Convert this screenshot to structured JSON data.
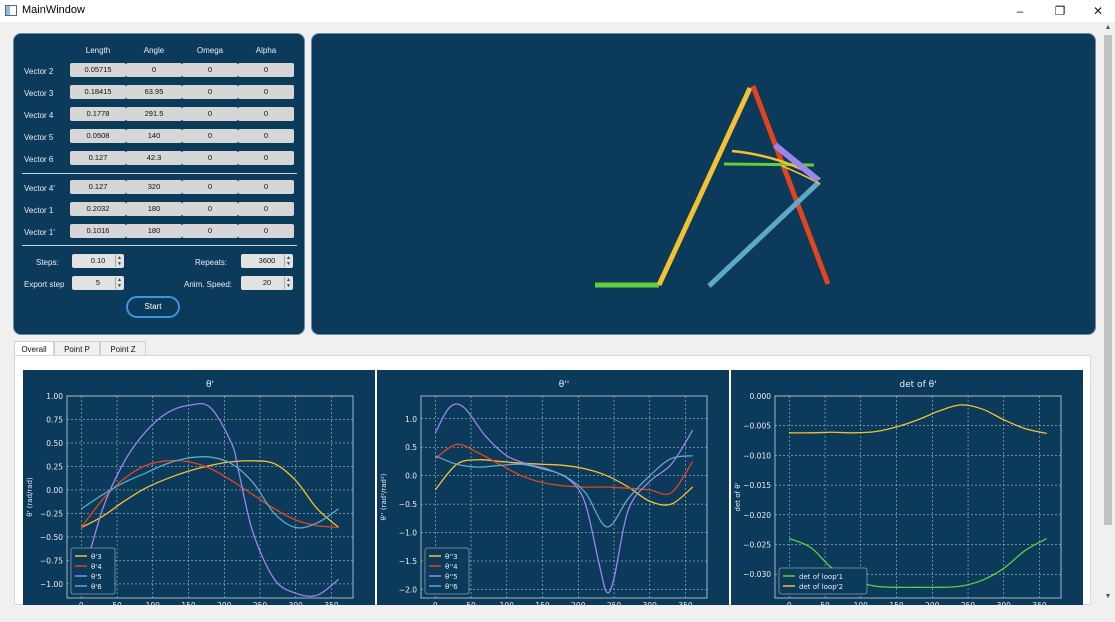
{
  "window": {
    "title": "MainWindow",
    "minimize_glyph": "–",
    "restore_glyph": "❐",
    "close_glyph": "✕"
  },
  "table": {
    "headers": [
      "Length",
      "Angle",
      "Omega",
      "Alpha"
    ],
    "rows": [
      {
        "label": "Vector 2",
        "length": "0.05715",
        "angle": "0",
        "omega": "0",
        "alpha": "0"
      },
      {
        "label": "Vector 3",
        "length": "0.18415",
        "angle": "63.95",
        "omega": "0",
        "alpha": "0"
      },
      {
        "label": "Vector 4",
        "length": "0.1778",
        "angle": "291.5",
        "omega": "0",
        "alpha": "0"
      },
      {
        "label": "Vector 5",
        "length": "0.0508",
        "angle": "140",
        "omega": "0",
        "alpha": "0"
      },
      {
        "label": "Vector 6",
        "length": "0.127",
        "angle": "42.3",
        "omega": "0",
        "alpha": "0"
      },
      {
        "label": "Vector 4'",
        "length": "0.127",
        "angle": "320",
        "omega": "0",
        "alpha": "0"
      },
      {
        "label": "Vector 1",
        "length": "0.2032",
        "angle": "180",
        "omega": "0",
        "alpha": "0"
      },
      {
        "label": "Vector 1'",
        "length": "0.1016",
        "angle": "180",
        "omega": "0",
        "alpha": "0"
      }
    ]
  },
  "controls": {
    "steps_label": "Steps:",
    "steps_value": "0.10",
    "repeats_label": "Repeats:",
    "repeats_value": "3600",
    "export_label": "Export step",
    "export_value": "5",
    "anim_label": "Anim. Speed:",
    "anim_value": "20",
    "start_label": "Start"
  },
  "tabs": [
    "Overall",
    "Point P",
    "Point Z"
  ],
  "colors": {
    "panel": "#0c3a5a",
    "green": "#5fd03c",
    "yellow": "#f6c130",
    "red": "#e2441e",
    "purple": "#9a86ec",
    "teal": "#5fa8c8"
  },
  "chart_data": [
    {
      "type": "line",
      "title": "θ'",
      "ylabel": "θ' (rad/rad)",
      "xlim": [
        0,
        360
      ],
      "ylim": [
        -1.15,
        1.0
      ],
      "xticks": [
        0,
        50,
        100,
        150,
        200,
        250,
        300,
        350
      ],
      "yticks": [
        1.0,
        0.75,
        0.5,
        0.25,
        0.0,
        -0.25,
        -0.5,
        -0.75,
        -1.0
      ],
      "ytick_labels": [
        "1.00",
        "0.75",
        "0.50",
        "0.25",
        "0.00",
        "−0.25",
        "−0.50",
        "−0.75",
        "−1.00"
      ],
      "grid": true,
      "legend": "lower-left",
      "series": [
        {
          "name": "θ'3",
          "x": [
            0,
            30,
            60,
            90,
            120,
            150,
            180,
            210,
            240,
            270,
            300,
            330,
            360
          ],
          "values": [
            -0.4,
            -0.28,
            -0.12,
            0.02,
            0.12,
            0.2,
            0.26,
            0.3,
            0.31,
            0.28,
            0.1,
            -0.2,
            -0.4
          ]
        },
        {
          "name": "θ'4",
          "x": [
            0,
            30,
            60,
            90,
            120,
            150,
            180,
            210,
            240,
            270,
            300,
            330,
            360
          ],
          "values": [
            -0.4,
            -0.1,
            0.12,
            0.26,
            0.31,
            0.3,
            0.23,
            0.1,
            -0.05,
            -0.2,
            -0.32,
            -0.38,
            -0.4
          ]
        },
        {
          "name": "θ'5",
          "x": [
            0,
            30,
            60,
            90,
            120,
            150,
            180,
            210,
            220,
            240,
            270,
            300,
            330,
            360
          ],
          "values": [
            -1.0,
            -0.2,
            0.3,
            0.62,
            0.82,
            0.9,
            0.88,
            0.5,
            0.2,
            -0.45,
            -0.95,
            -1.1,
            -1.12,
            -0.95
          ]
        },
        {
          "name": "θ'6",
          "x": [
            0,
            30,
            60,
            90,
            120,
            150,
            180,
            210,
            240,
            270,
            300,
            330,
            360
          ],
          "values": [
            -0.2,
            -0.05,
            0.08,
            0.18,
            0.28,
            0.34,
            0.35,
            0.28,
            0.08,
            -0.25,
            -0.4,
            -0.35,
            -0.2
          ]
        }
      ]
    },
    {
      "type": "line",
      "title": "θ''",
      "ylabel": "θ'' (rad²/rad²)",
      "xlim": [
        0,
        360
      ],
      "ylim": [
        -2.15,
        1.4
      ],
      "xticks": [
        0,
        50,
        100,
        150,
        200,
        250,
        300,
        350
      ],
      "yticks": [
        1.0,
        0.5,
        0.0,
        -0.5,
        -1.0,
        -1.5,
        -2.0
      ],
      "ytick_labels": [
        "1.0",
        "0.5",
        "0.0",
        "−0.5",
        "−1.0",
        "−1.5",
        "−2.0"
      ],
      "grid": true,
      "legend": "lower-left",
      "series": [
        {
          "name": "θ''3",
          "x": [
            0,
            30,
            60,
            90,
            120,
            150,
            180,
            210,
            240,
            270,
            300,
            330,
            360
          ],
          "values": [
            -0.25,
            0.2,
            0.28,
            0.25,
            0.22,
            0.2,
            0.18,
            0.12,
            0.0,
            -0.2,
            -0.45,
            -0.5,
            -0.2
          ]
        },
        {
          "name": "θ''4",
          "x": [
            0,
            30,
            60,
            90,
            120,
            150,
            180,
            210,
            240,
            270,
            300,
            330,
            360
          ],
          "values": [
            0.3,
            0.55,
            0.4,
            0.2,
            0.0,
            -0.12,
            -0.18,
            -0.2,
            -0.2,
            -0.22,
            -0.25,
            -0.3,
            0.25
          ]
        },
        {
          "name": "θ''5",
          "x": [
            0,
            20,
            40,
            70,
            100,
            130,
            160,
            190,
            210,
            230,
            240,
            250,
            270,
            300,
            330,
            360
          ],
          "values": [
            0.75,
            1.2,
            1.2,
            0.7,
            0.35,
            0.2,
            0.1,
            -0.1,
            -0.5,
            -1.6,
            -2.05,
            -1.8,
            -0.6,
            -0.1,
            0.2,
            0.8
          ]
        },
        {
          "name": "θ''6",
          "x": [
            0,
            30,
            60,
            90,
            120,
            150,
            180,
            210,
            240,
            270,
            300,
            330,
            360
          ],
          "values": [
            0.35,
            0.2,
            0.15,
            0.18,
            0.2,
            0.12,
            0.0,
            -0.3,
            -0.9,
            -0.4,
            0.0,
            0.3,
            0.35
          ]
        }
      ]
    },
    {
      "type": "line",
      "title": "det of θ'",
      "ylabel": "det of θ'",
      "xlim": [
        0,
        360
      ],
      "ylim": [
        -0.034,
        0.0
      ],
      "xticks": [
        0,
        50,
        100,
        150,
        200,
        250,
        300,
        350
      ],
      "yticks": [
        0.0,
        -0.005,
        -0.01,
        -0.015,
        -0.02,
        -0.025,
        -0.03
      ],
      "ytick_labels": [
        "0.000",
        "−0.005",
        "−0.010",
        "−0.015",
        "−0.020",
        "−0.025",
        "−0.030"
      ],
      "grid": true,
      "legend": "lower-left",
      "series": [
        {
          "name": "det of loop'1",
          "x": [
            0,
            30,
            60,
            90,
            120,
            150,
            180,
            210,
            240,
            270,
            300,
            330,
            360
          ],
          "values": [
            -0.024,
            -0.0255,
            -0.029,
            -0.031,
            -0.032,
            -0.0322,
            -0.0322,
            -0.0322,
            -0.032,
            -0.031,
            -0.029,
            -0.026,
            -0.024
          ]
        },
        {
          "name": "det of loop'2",
          "x": [
            0,
            30,
            60,
            90,
            120,
            150,
            180,
            210,
            240,
            270,
            300,
            330,
            360
          ],
          "values": [
            -0.0062,
            -0.0062,
            -0.0061,
            -0.0062,
            -0.006,
            -0.0052,
            -0.004,
            -0.0025,
            -0.0015,
            -0.0022,
            -0.004,
            -0.0055,
            -0.0063
          ]
        }
      ]
    }
  ]
}
